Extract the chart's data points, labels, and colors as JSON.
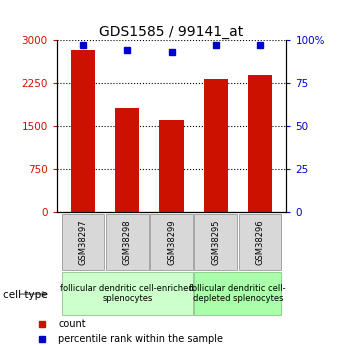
{
  "title": "GDS1585 / 99141_at",
  "samples": [
    "GSM38297",
    "GSM38298",
    "GSM38299",
    "GSM38295",
    "GSM38296"
  ],
  "counts": [
    2820,
    1820,
    1600,
    2320,
    2380
  ],
  "percentiles": [
    97,
    94,
    93,
    97,
    97
  ],
  "ylim_left": [
    0,
    3000
  ],
  "ylim_right": [
    0,
    100
  ],
  "yticks_left": [
    0,
    750,
    1500,
    2250,
    3000
  ],
  "yticks_right": [
    0,
    25,
    50,
    75,
    100
  ],
  "bar_color": "#cc1100",
  "dot_color": "#0000cc",
  "bar_width": 0.55,
  "group_colors": [
    "#ccffcc",
    "#aaffaa"
  ],
  "group_labels": [
    "follicular dendritic cell-enriched\nsplenocytes",
    "follicular dendritic cell-\ndepleted splenocytes"
  ],
  "group_ranges": [
    [
      0,
      2
    ],
    [
      3,
      4
    ]
  ],
  "cell_type_label": "cell type",
  "legend_count_label": "count",
  "legend_pct_label": "percentile rank within the sample",
  "title_fontsize": 10,
  "tick_fontsize": 7.5,
  "sample_fontsize": 6,
  "group_fontsize": 6,
  "legend_fontsize": 7
}
